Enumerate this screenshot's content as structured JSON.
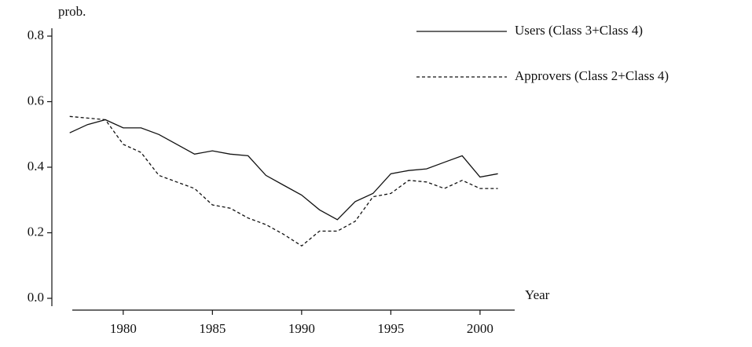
{
  "chart_data": {
    "type": "line",
    "y_label": "prob.",
    "x_label": "Year",
    "x": [
      1977,
      1978,
      1979,
      1980,
      1981,
      1982,
      1983,
      1984,
      1985,
      1986,
      1987,
      1988,
      1989,
      1990,
      1991,
      1992,
      1993,
      1994,
      1995,
      1996,
      1997,
      1998,
      1999,
      2000,
      2001
    ],
    "series": [
      {
        "name": "Users (Class 3+Class 4)",
        "color": "#111111",
        "dash": false,
        "values": [
          0.505,
          0.53,
          0.545,
          0.52,
          0.52,
          0.5,
          0.47,
          0.44,
          0.45,
          0.44,
          0.435,
          0.375,
          0.345,
          0.315,
          0.27,
          0.24,
          0.295,
          0.32,
          0.38,
          0.39,
          0.395,
          0.415,
          0.435,
          0.37,
          0.38
        ]
      },
      {
        "name": "Approvers (Class 2+Class 4)",
        "color": "#111111",
        "dash": true,
        "values": [
          0.555,
          0.55,
          0.545,
          0.47,
          0.445,
          0.375,
          0.355,
          0.335,
          0.285,
          0.275,
          0.245,
          0.225,
          0.195,
          0.16,
          0.205,
          0.205,
          0.235,
          0.31,
          0.32,
          0.36,
          0.355,
          0.335,
          0.36,
          0.335,
          0.335
        ]
      }
    ],
    "xlim": [
      1976,
      2003
    ],
    "xticks": [
      1980,
      1985,
      1990,
      1995,
      2000
    ],
    "ylim": [
      0,
      0.8
    ],
    "yticks": [
      {
        "value": 0,
        "label": "0.0"
      },
      0.2,
      0.4,
      0.6,
      0.8
    ],
    "grid": false,
    "legend": "top-right"
  }
}
